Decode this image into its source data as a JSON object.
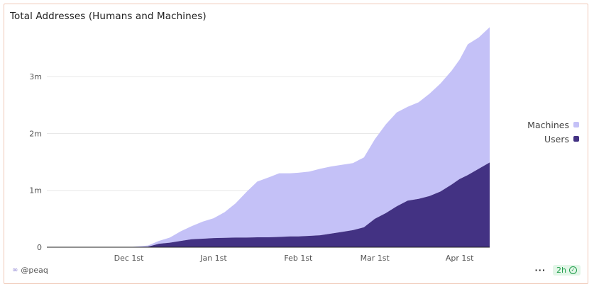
{
  "chart": {
    "title": "Total Addresses (Humans and Machines)"
  },
  "footer": {
    "source": "@peaq",
    "refresh": "2h",
    "more": "···"
  },
  "colors": {
    "machines": "#c4c1f7",
    "users": "#433283",
    "grid": "#e8e8e8",
    "border": "#f0c9b8"
  },
  "chart_data": {
    "type": "area",
    "stacked": true,
    "title": "Total Addresses (Humans and Machines)",
    "xlabel": "",
    "ylabel": "",
    "ylim": [
      0,
      3900000
    ],
    "x_tick_labels": [
      "Dec 1st",
      "Jan 1st",
      "Feb 1st",
      "Mar 1st",
      "Apr 1st"
    ],
    "x_tick_dates": [
      "2024-12-01",
      "2025-01-01",
      "2025-02-01",
      "2025-03-01",
      "2025-04-01"
    ],
    "y_ticks": [
      0,
      1000000,
      2000000,
      3000000
    ],
    "y_tick_labels": [
      "0",
      "1m",
      "2m",
      "3m"
    ],
    "legend_position": "right",
    "grid": true,
    "x": [
      "2024-11-01",
      "2024-11-10",
      "2024-11-20",
      "2024-12-01",
      "2024-12-08",
      "2024-12-12",
      "2024-12-16",
      "2024-12-20",
      "2024-12-24",
      "2024-12-28",
      "2025-01-01",
      "2025-01-05",
      "2025-01-09",
      "2025-01-13",
      "2025-01-17",
      "2025-01-21",
      "2025-01-25",
      "2025-01-29",
      "2025-02-01",
      "2025-02-05",
      "2025-02-09",
      "2025-02-13",
      "2025-02-17",
      "2025-02-21",
      "2025-02-25",
      "2025-03-01",
      "2025-03-05",
      "2025-03-09",
      "2025-03-13",
      "2025-03-17",
      "2025-03-21",
      "2025-03-25",
      "2025-03-29",
      "2025-04-01",
      "2025-04-04",
      "2025-04-08",
      "2025-04-12"
    ],
    "series": [
      {
        "name": "Users",
        "values": [
          0,
          0,
          0,
          0,
          10000,
          60000,
          80000,
          110000,
          140000,
          150000,
          160000,
          165000,
          170000,
          170000,
          175000,
          175000,
          180000,
          190000,
          190000,
          200000,
          210000,
          240000,
          270000,
          300000,
          350000,
          500000,
          600000,
          720000,
          820000,
          850000,
          900000,
          980000,
          1100000,
          1200000,
          1270000,
          1380000,
          1490000
        ]
      },
      {
        "name": "Machines",
        "values": [
          0,
          0,
          0,
          0,
          20000,
          50000,
          90000,
          170000,
          230000,
          300000,
          350000,
          450000,
          600000,
          800000,
          980000,
          1050000,
          1120000,
          1110000,
          1120000,
          1130000,
          1170000,
          1180000,
          1180000,
          1180000,
          1230000,
          1400000,
          1560000,
          1650000,
          1650000,
          1700000,
          1800000,
          1900000,
          2000000,
          2100000,
          2300000,
          2310000,
          2380000
        ]
      }
    ]
  }
}
